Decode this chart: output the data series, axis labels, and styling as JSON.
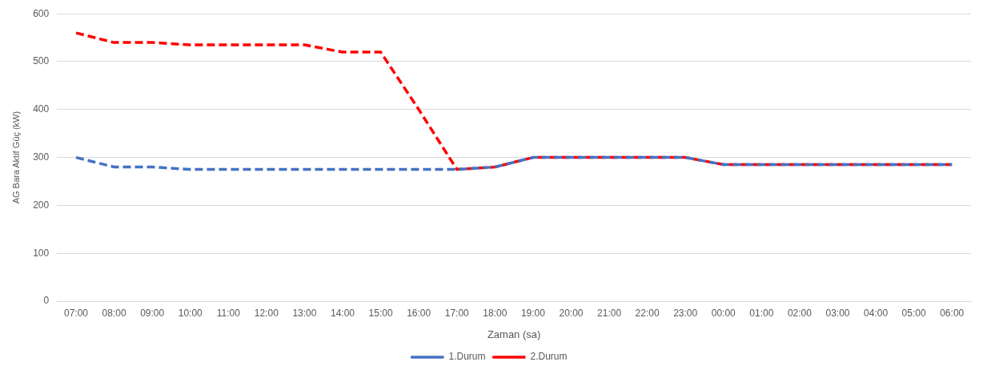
{
  "chart_data": {
    "type": "line",
    "xlabel": "Zaman (sa)",
    "ylabel": "AG Bara Aktif Güç (kW)",
    "categories": [
      "07:00",
      "08:00",
      "09:00",
      "10:00",
      "11:00",
      "12:00",
      "13:00",
      "14:00",
      "15:00",
      "16:00",
      "17:00",
      "18:00",
      "19:00",
      "20:00",
      "21:00",
      "22:00",
      "23:00",
      "00:00",
      "01:00",
      "02:00",
      "03:00",
      "04:00",
      "05:00",
      "06:00"
    ],
    "series": [
      {
        "name": "1.Durum",
        "color": "#4472c4",
        "values": [
          300,
          280,
          280,
          275,
          275,
          275,
          275,
          275,
          275,
          275,
          275,
          280,
          300,
          300,
          300,
          300,
          300,
          285,
          285,
          285,
          285,
          285,
          285,
          285
        ]
      },
      {
        "name": "2.Durum",
        "color": "#ff0000",
        "values": [
          560,
          540,
          540,
          535,
          535,
          535,
          535,
          520,
          520,
          400,
          275,
          280,
          300,
          300,
          300,
          300,
          300,
          285,
          285,
          285,
          285,
          285,
          285,
          285
        ]
      }
    ],
    "ylim": [
      0,
      600
    ],
    "yticks": [
      0,
      100,
      200,
      300,
      400,
      500,
      600
    ],
    "grid": "y",
    "legend": "bottom",
    "line_style": "dashed",
    "marker": "none"
  }
}
